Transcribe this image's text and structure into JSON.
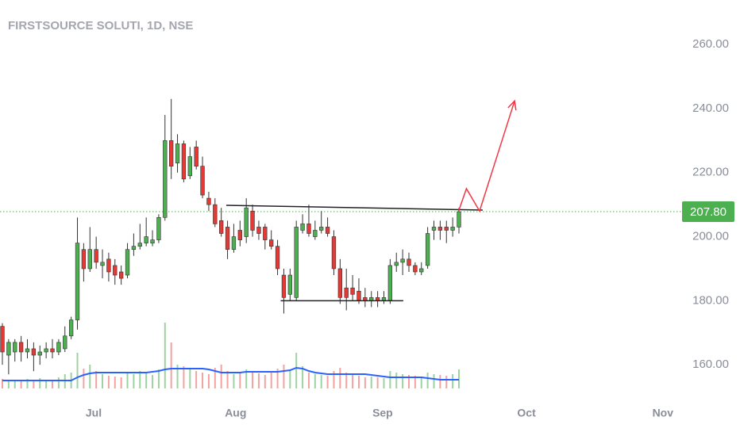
{
  "chart_data": {
    "type": "candlestick",
    "title": "FIRSTSOURCE SOLUTI, 1D, NSE",
    "up_color": "#4caf50",
    "down_color": "#e53935",
    "open": [
      172,
      163,
      164,
      167,
      164,
      165,
      163,
      164,
      165,
      164,
      165,
      169,
      174,
      196,
      190,
      196,
      191,
      193,
      191,
      189,
      188,
      196,
      197,
      198,
      198,
      199,
      206,
      230,
      223,
      229,
      219,
      228,
      222,
      212,
      210,
      205,
      203,
      196,
      202,
      200,
      208,
      203,
      203,
      199,
      197,
      188,
      182,
      181,
      202,
      204,
      200,
      202,
      203,
      200,
      190,
      184,
      184,
      183,
      181,
      180,
      181,
      180,
      180,
      191,
      192,
      193,
      191,
      189,
      191,
      202,
      203,
      203,
      202,
      203
    ],
    "high": [
      173,
      168,
      168,
      169,
      168,
      167,
      166,
      167,
      168,
      168,
      172,
      175,
      206,
      198,
      203,
      200,
      196,
      195,
      193,
      191,
      198,
      201,
      204,
      206,
      202,
      207,
      238,
      243,
      232,
      230,
      228,
      230,
      225,
      214,
      212,
      209,
      205,
      204,
      205,
      212,
      210,
      205,
      204,
      202,
      199,
      190,
      190,
      205,
      207,
      210,
      205,
      208,
      206,
      202,
      193,
      190,
      188,
      187,
      184,
      183,
      183,
      183,
      193,
      195,
      196,
      195,
      192,
      192,
      203,
      205,
      205,
      205,
      206,
      209
    ],
    "low": [
      160,
      157,
      161,
      161,
      162,
      158,
      160,
      162,
      162,
      163,
      164,
      168,
      171,
      186,
      189,
      190,
      187,
      186,
      185,
      185,
      187,
      194,
      196,
      197,
      197,
      198,
      205,
      218,
      220,
      217,
      218,
      221,
      212,
      208,
      203,
      200,
      193,
      195,
      197,
      198,
      200,
      199,
      196,
      196,
      188,
      176,
      180,
      180,
      201,
      200,
      199,
      201,
      200,
      188,
      179,
      177,
      180,
      179,
      178,
      178,
      178,
      179,
      179,
      189,
      188,
      189,
      188,
      188,
      190,
      199,
      199,
      198,
      200,
      201
    ],
    "close": [
      164,
      167,
      167,
      164,
      165,
      163,
      164,
      165,
      164,
      167,
      169,
      174,
      198,
      190,
      196,
      192,
      192,
      189,
      188,
      187,
      196,
      197,
      198,
      200,
      199,
      206,
      230,
      222,
      229,
      218,
      225,
      222,
      213,
      210,
      204,
      201,
      196,
      200,
      199,
      209,
      202,
      201,
      199,
      197,
      190,
      181,
      188,
      203,
      204,
      201,
      202,
      203,
      201,
      190,
      181,
      181,
      182,
      180,
      180,
      181,
      180,
      181,
      191,
      192,
      193,
      191,
      189,
      190,
      201,
      203,
      202,
      202,
      203,
      207.8
    ],
    "volume": [
      12,
      10,
      11,
      9,
      12,
      10,
      13,
      11,
      10,
      14,
      18,
      20,
      45,
      25,
      30,
      22,
      18,
      16,
      15,
      14,
      20,
      18,
      22,
      19,
      17,
      24,
      83,
      58,
      30,
      28,
      25,
      22,
      20,
      18,
      26,
      30,
      22,
      18,
      20,
      24,
      22,
      19,
      17,
      20,
      25,
      30,
      22,
      45,
      28,
      20,
      18,
      17,
      16,
      22,
      26,
      20,
      18,
      16,
      14,
      15,
      14,
      13,
      22,
      20,
      18,
      17,
      16,
      15,
      20,
      18,
      17,
      16,
      18,
      24
    ],
    "volume_ma": [
      10,
      10,
      10,
      10,
      10,
      10,
      10,
      10,
      10,
      10,
      10,
      10,
      14,
      17,
      19,
      20,
      20,
      20,
      20,
      20,
      20,
      20,
      20,
      20,
      21,
      22,
      24,
      25,
      25,
      25,
      25,
      25,
      25,
      24,
      22,
      20,
      20,
      20,
      20,
      21,
      21,
      21,
      21,
      21,
      21,
      22,
      23,
      26,
      25,
      22,
      20,
      19,
      18,
      18,
      18,
      18,
      18,
      18,
      18,
      17,
      16,
      15,
      14,
      14,
      14,
      14,
      14,
      14,
      13,
      12,
      11,
      11,
      11,
      11
    ],
    "volume_ylim": [
      0,
      490
    ],
    "ylim": [
      148.9,
      273.9
    ],
    "yticks": [
      {
        "value": 160,
        "label": "160.00"
      },
      {
        "value": 180,
        "label": "180.00"
      },
      {
        "value": 200,
        "label": "200.00"
      },
      {
        "value": 220,
        "label": "220.00"
      },
      {
        "value": 240,
        "label": "240.00"
      },
      {
        "value": 260,
        "label": "260.00"
      }
    ],
    "xlim": [
      -0.38,
      108.8
    ],
    "xticks": [
      {
        "value": 14.6,
        "label": "Jul"
      },
      {
        "value": 37.3,
        "label": "Aug"
      },
      {
        "value": 60.8,
        "label": "Sep"
      },
      {
        "value": 83.8,
        "label": "Oct"
      },
      {
        "value": 105.6,
        "label": "Nov"
      }
    ],
    "last_price": 207.8,
    "last_price_label": "207.80",
    "volume_color_up": "#9ed2a0",
    "volume_color_down": "#f2a3a0",
    "volume_ma_color": "#2962ff",
    "drawings": [
      {
        "color": "#222222",
        "x": [
          35.8,
          76.8
        ],
        "y": [
          209.8,
          208.3
        ]
      },
      {
        "color": "#222222",
        "x": [
          44.5,
          64.1
        ],
        "y": [
          180.0,
          180.0
        ]
      },
      {
        "color": "#f23645",
        "x": [
          73,
          74.2,
          76.3,
          81.9
        ],
        "y": [
          208.3,
          215.0,
          208.0,
          242.4
        ],
        "arrow": true
      }
    ]
  }
}
